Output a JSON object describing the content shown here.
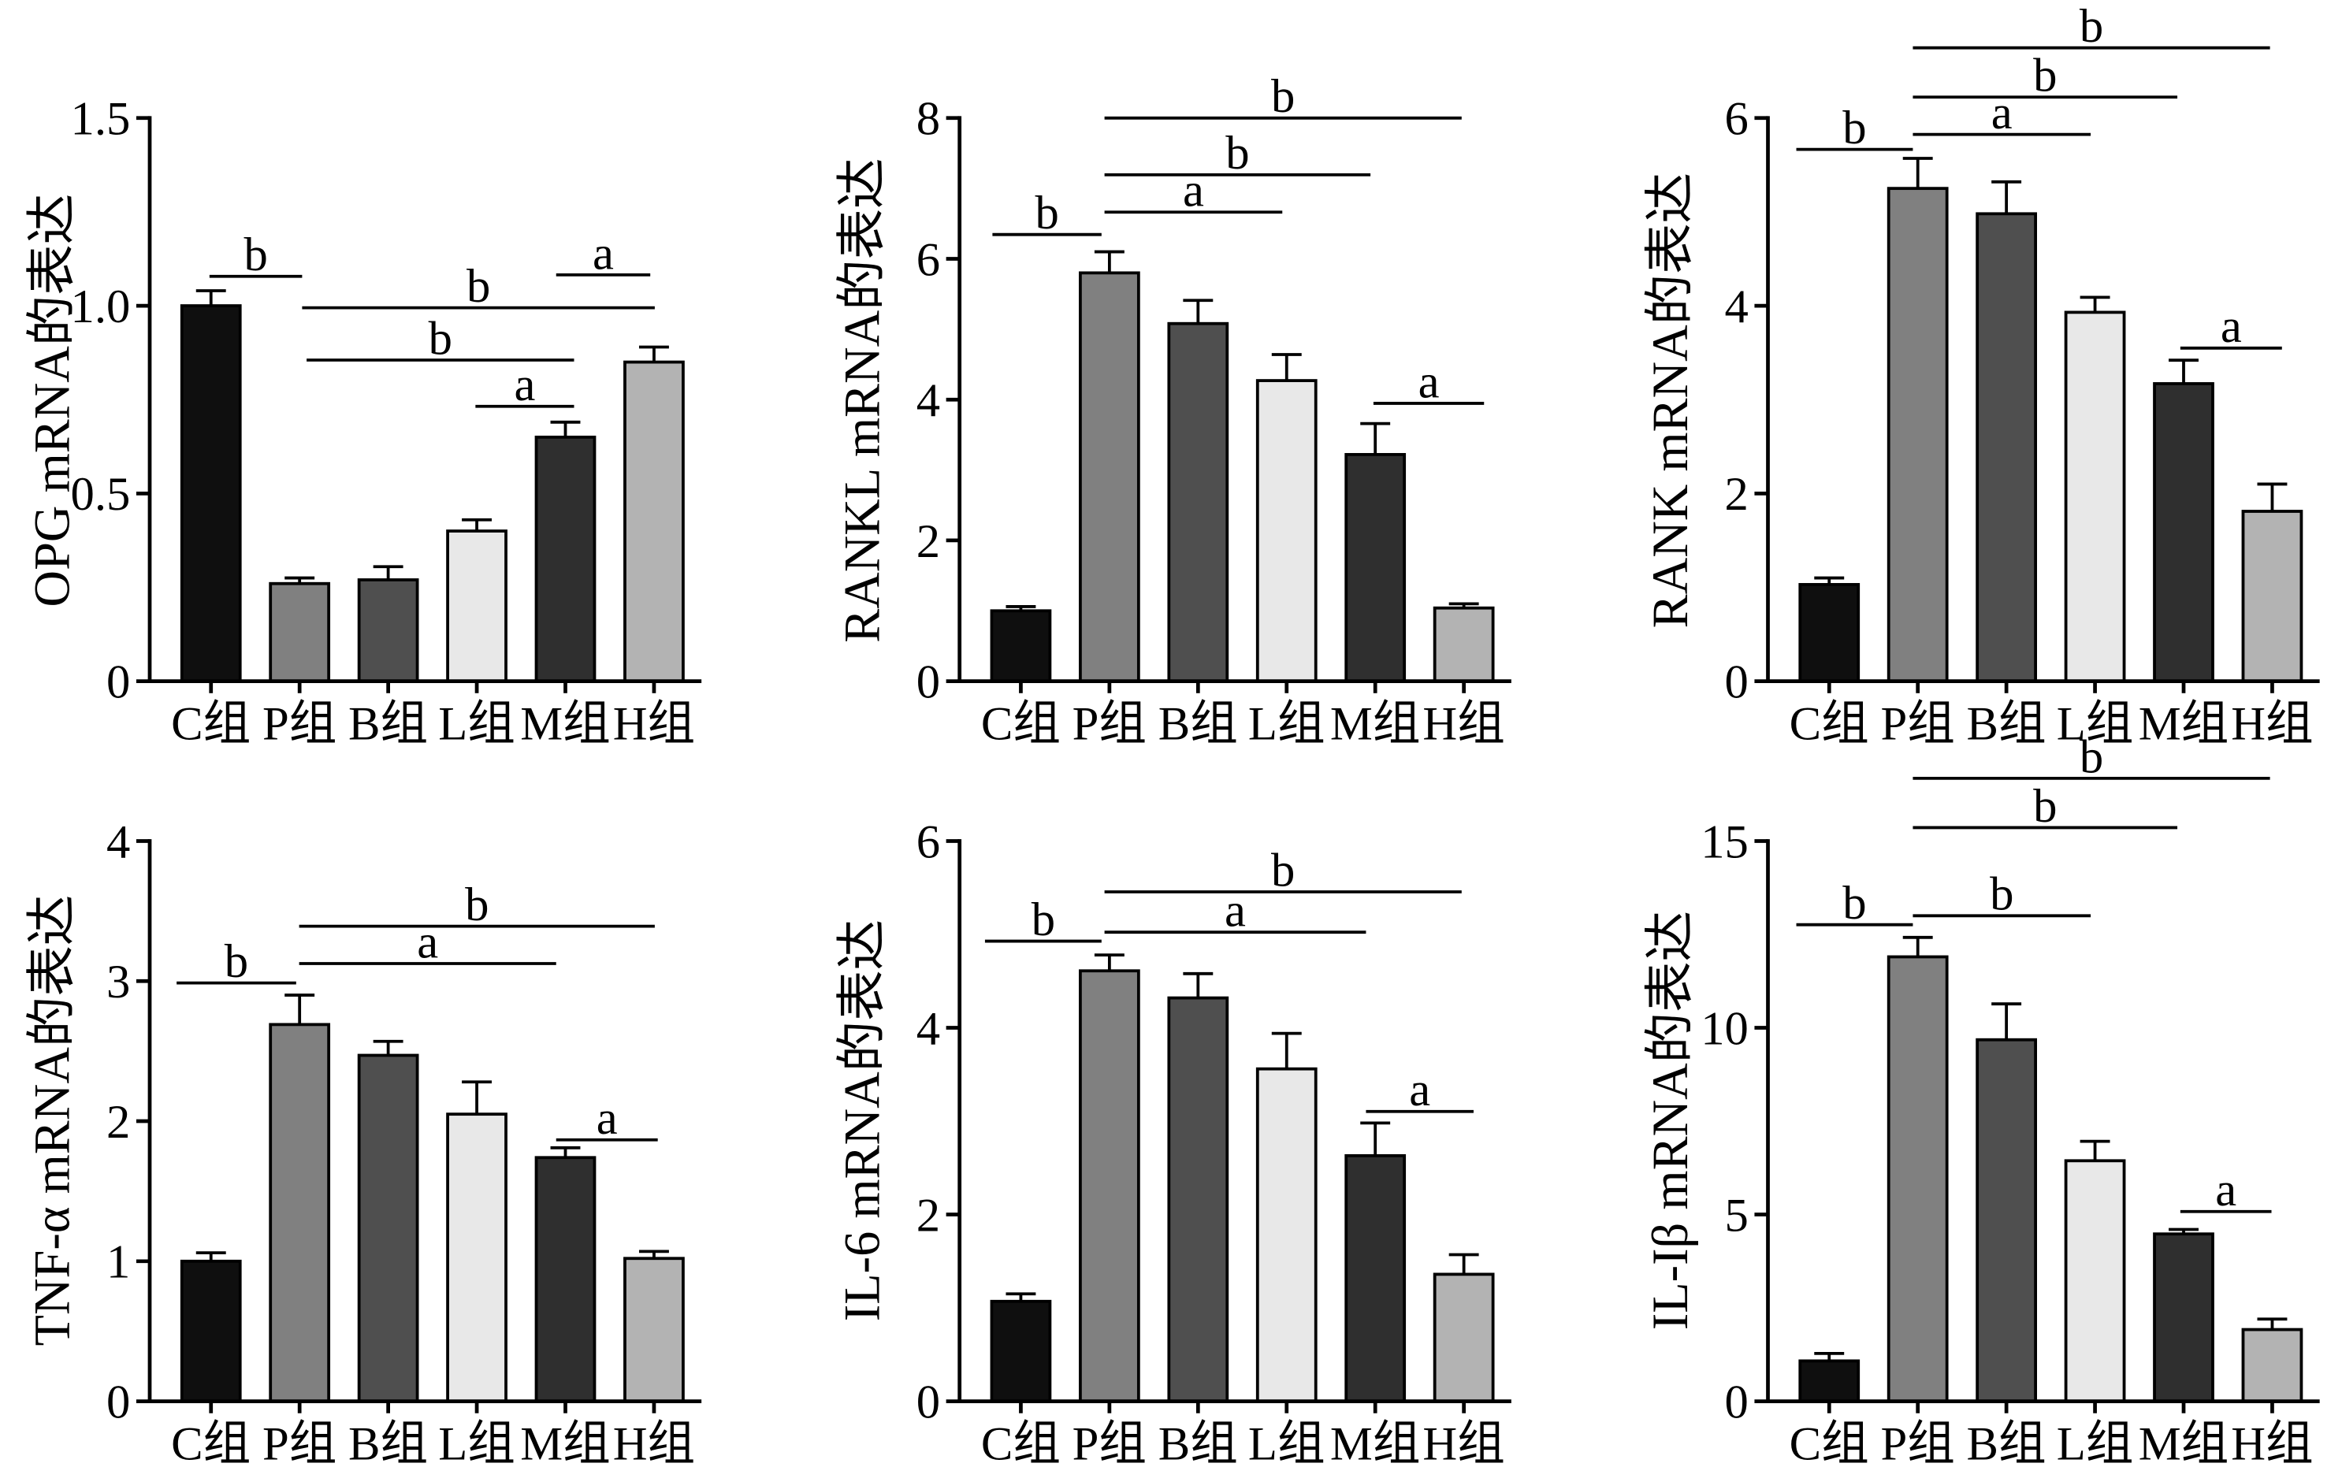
{
  "chart_data": [
    {
      "type": "bar",
      "ylabel": "OPG mRNA的表达",
      "categories": [
        "C组",
        "P组",
        "B组",
        "L组",
        "M组",
        "H组"
      ],
      "values": [
        1.0,
        0.26,
        0.27,
        0.4,
        0.65,
        0.85
      ],
      "errors": [
        0.04,
        0.015,
        0.035,
        0.03,
        0.04,
        0.04
      ],
      "ylim": [
        0,
        1.5
      ],
      "yticks": [
        0,
        0.5,
        1.0,
        1.5
      ],
      "ytick_labels": [
        "0",
        "0.5",
        "1.0",
        "1.5"
      ],
      "grid": false,
      "comparisons": [
        {
          "between": [
            0,
            1
          ],
          "label": "b"
        },
        {
          "between": [
            1,
            5
          ],
          "label": "b"
        },
        {
          "between": [
            1,
            4
          ],
          "label": "b"
        },
        {
          "between": [
            3,
            4
          ],
          "label": "a"
        },
        {
          "between": [
            4,
            5
          ],
          "label": "a"
        }
      ]
    },
    {
      "type": "bar",
      "ylabel": "RANKL mRNA的表达",
      "categories": [
        "C组",
        "P组",
        "B组",
        "L组",
        "M组",
        "H组"
      ],
      "values": [
        1.0,
        5.8,
        5.08,
        4.27,
        3.22,
        1.04
      ],
      "errors": [
        0.06,
        0.3,
        0.33,
        0.37,
        0.44,
        0.06
      ],
      "ylim": [
        0,
        8
      ],
      "yticks": [
        0,
        2,
        4,
        6,
        8
      ],
      "ytick_labels": [
        "0",
        "2",
        "4",
        "6",
        "8"
      ],
      "grid": false,
      "comparisons": [
        {
          "between": [
            0,
            1
          ],
          "label": "b"
        },
        {
          "between": [
            1,
            5
          ],
          "label": "b"
        },
        {
          "between": [
            1,
            4
          ],
          "label": "b"
        },
        {
          "between": [
            1,
            3
          ],
          "label": "a"
        },
        {
          "between": [
            4,
            5
          ],
          "label": "a"
        }
      ]
    },
    {
      "type": "bar",
      "ylabel": "RANK mRNA的表达",
      "categories": [
        "C组",
        "P组",
        "B组",
        "L组",
        "M组",
        "H组"
      ],
      "values": [
        1.03,
        5.25,
        4.98,
        3.93,
        3.17,
        1.81
      ],
      "errors": [
        0.07,
        0.32,
        0.34,
        0.16,
        0.25,
        0.29
      ],
      "ylim": [
        0,
        6
      ],
      "yticks": [
        0,
        2,
        4,
        6
      ],
      "ytick_labels": [
        "0",
        "2",
        "4",
        "6"
      ],
      "grid": false,
      "comparisons": [
        {
          "between": [
            0,
            1
          ],
          "label": "b"
        },
        {
          "between": [
            1,
            5
          ],
          "label": "b"
        },
        {
          "between": [
            1,
            4
          ],
          "label": "b"
        },
        {
          "between": [
            1,
            3
          ],
          "label": "a"
        },
        {
          "between": [
            4,
            5
          ],
          "label": "a"
        }
      ]
    },
    {
      "type": "bar",
      "ylabel": "TNF-α mRNA的表达",
      "categories": [
        "C组",
        "P组",
        "B组",
        "L组",
        "M组",
        "H组"
      ],
      "values": [
        1.0,
        2.69,
        2.47,
        2.05,
        1.74,
        1.02
      ],
      "errors": [
        0.06,
        0.21,
        0.1,
        0.23,
        0.07,
        0.05
      ],
      "ylim": [
        0,
        4
      ],
      "yticks": [
        0,
        1,
        2,
        3,
        4
      ],
      "ytick_labels": [
        "0",
        "1",
        "2",
        "3",
        "4"
      ],
      "grid": false,
      "comparisons": [
        {
          "between": [
            0,
            1
          ],
          "label": "b"
        },
        {
          "between": [
            1,
            5
          ],
          "label": "b"
        },
        {
          "between": [
            1,
            4
          ],
          "label": "a"
        },
        {
          "between": [
            4,
            5
          ],
          "label": "a"
        }
      ]
    },
    {
      "type": "bar",
      "ylabel": "IL-6 mRNA的表达",
      "categories": [
        "C组",
        "P组",
        "B组",
        "L组",
        "M组",
        "H组"
      ],
      "values": [
        1.07,
        4.61,
        4.32,
        3.56,
        2.63,
        1.36
      ],
      "errors": [
        0.08,
        0.17,
        0.26,
        0.38,
        0.35,
        0.21
      ],
      "ylim": [
        0,
        6
      ],
      "yticks": [
        0,
        2,
        4,
        6
      ],
      "ytick_labels": [
        "0",
        "2",
        "4",
        "6"
      ],
      "grid": false,
      "comparisons": [
        {
          "between": [
            0,
            1
          ],
          "label": "b"
        },
        {
          "between": [
            1,
            5
          ],
          "label": "b"
        },
        {
          "between": [
            1,
            4
          ],
          "label": "a"
        },
        {
          "between": [
            4,
            5
          ],
          "label": "a"
        }
      ]
    },
    {
      "type": "bar",
      "ylabel": "IL-Iβ mRNA的表达",
      "categories": [
        "C组",
        "P组",
        "B组",
        "L组",
        "M组",
        "H组"
      ],
      "values": [
        1.08,
        11.9,
        9.68,
        6.44,
        4.48,
        1.92
      ],
      "errors": [
        0.2,
        0.52,
        0.96,
        0.52,
        0.12,
        0.28
      ],
      "ylim": [
        0,
        15
      ],
      "yticks": [
        0,
        5,
        10,
        15
      ],
      "ytick_labels": [
        "0",
        "5",
        "10",
        "15"
      ],
      "grid": false,
      "comparisons": [
        {
          "between": [
            0,
            1
          ],
          "label": "b"
        },
        {
          "between": [
            1,
            5
          ],
          "label": "b"
        },
        {
          "between": [
            1,
            4
          ],
          "label": "b"
        },
        {
          "between": [
            1,
            3
          ],
          "label": "b"
        },
        {
          "between": [
            4,
            5
          ],
          "label": "a"
        }
      ]
    }
  ],
  "colors": {
    "bar_fills": [
      "#0f0f0f",
      "#808080",
      "#4f4f4f",
      "#e8e8e8",
      "#2f2f2f",
      "#b3b3b3"
    ],
    "stroke": "#000000"
  }
}
